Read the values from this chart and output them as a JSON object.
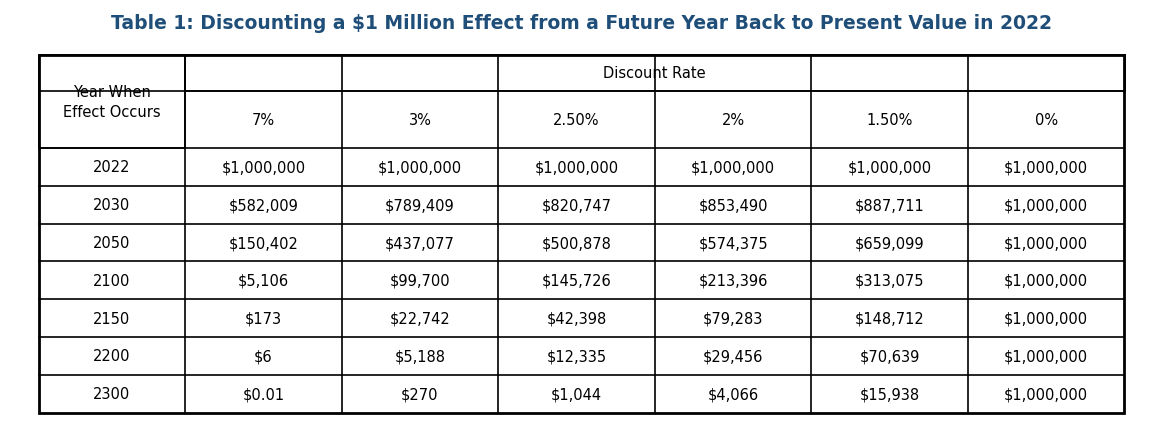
{
  "title": "Table 1: Discounting a $1 Million Effect from a Future Year Back to Present Value in 2022",
  "title_color": "#1F4E79",
  "col_header_row1": "Discount Rate",
  "col_header_row2": [
    "7%",
    "3%",
    "2.50%",
    "2%",
    "1.50%",
    "0%"
  ],
  "row_header_label": [
    "Year When\nEffect Occurs"
  ],
  "row_years": [
    "2022",
    "2030",
    "2050",
    "2100",
    "2150",
    "2200",
    "2300"
  ],
  "table_data": [
    [
      "$1,000,000",
      "$1,000,000",
      "$1,000,000",
      "$1,000,000",
      "$1,000,000",
      "$1,000,000"
    ],
    [
      "$582,009",
      "$789,409",
      "$820,747",
      "$853,490",
      "$887,711",
      "$1,000,000"
    ],
    [
      "$150,402",
      "$437,077",
      "$500,878",
      "$574,375",
      "$659,099",
      "$1,000,000"
    ],
    [
      "$5,106",
      "$99,700",
      "$145,726",
      "$213,396",
      "$313,075",
      "$1,000,000"
    ],
    [
      "$173",
      "$22,742",
      "$42,398",
      "$79,283",
      "$148,712",
      "$1,000,000"
    ],
    [
      "$6",
      "$5,188",
      "$12,335",
      "$29,456",
      "$70,639",
      "$1,000,000"
    ],
    [
      "$0.01",
      "$270",
      "$1,044",
      "$4,066",
      "$15,938",
      "$1,000,000"
    ]
  ],
  "background_color": "#ffffff",
  "title_fontsize": 13.5,
  "cell_fontsize": 10.5,
  "header_fontsize": 10.5
}
